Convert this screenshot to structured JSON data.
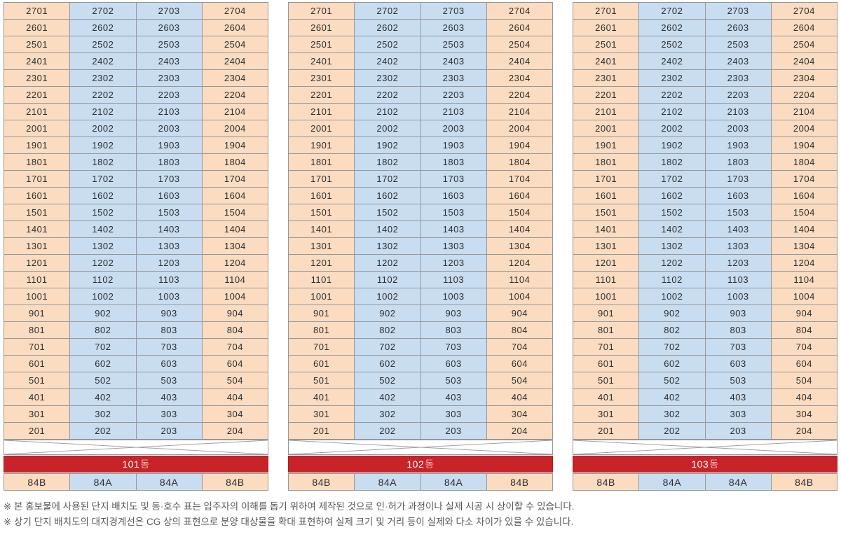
{
  "colors": {
    "peach": "#FBDCC0",
    "blue": "#C8DDF0",
    "banner_red": "#C9232A",
    "grid_border": "#96979A",
    "cell_text": "#2D2D2F",
    "banner_number_text": "#FFFFFF",
    "banner_suffix_text": "#F3B9AE",
    "footnote_text": "#58585A"
  },
  "column_pattern": [
    "peach",
    "blue",
    "blue",
    "peach"
  ],
  "unit_rows": [
    [
      "2701",
      "2702",
      "2703",
      "2704"
    ],
    [
      "2601",
      "2602",
      "2603",
      "2604"
    ],
    [
      "2501",
      "2502",
      "2503",
      "2504"
    ],
    [
      "2401",
      "2402",
      "2403",
      "2404"
    ],
    [
      "2301",
      "2302",
      "2303",
      "2304"
    ],
    [
      "2201",
      "2202",
      "2203",
      "2204"
    ],
    [
      "2101",
      "2102",
      "2103",
      "2104"
    ],
    [
      "2001",
      "2002",
      "2003",
      "2004"
    ],
    [
      "1901",
      "1902",
      "1903",
      "1904"
    ],
    [
      "1801",
      "1802",
      "1803",
      "1804"
    ],
    [
      "1701",
      "1702",
      "1703",
      "1704"
    ],
    [
      "1601",
      "1602",
      "1603",
      "1604"
    ],
    [
      "1501",
      "1502",
      "1503",
      "1504"
    ],
    [
      "1401",
      "1402",
      "1403",
      "1404"
    ],
    [
      "1301",
      "1302",
      "1303",
      "1304"
    ],
    [
      "1201",
      "1202",
      "1203",
      "1204"
    ],
    [
      "1101",
      "1102",
      "1103",
      "1104"
    ],
    [
      "1001",
      "1002",
      "1003",
      "1004"
    ],
    [
      "901",
      "902",
      "903",
      "904"
    ],
    [
      "801",
      "802",
      "803",
      "804"
    ],
    [
      "701",
      "702",
      "703",
      "704"
    ],
    [
      "601",
      "602",
      "603",
      "604"
    ],
    [
      "501",
      "502",
      "503",
      "504"
    ],
    [
      "401",
      "402",
      "403",
      "404"
    ],
    [
      "301",
      "302",
      "303",
      "304"
    ],
    [
      "201",
      "202",
      "203",
      "204"
    ]
  ],
  "buildings": [
    {
      "banner_number": "101",
      "banner_suffix": "동",
      "unit_types": [
        "84B",
        "84A",
        "84A",
        "84B"
      ]
    },
    {
      "banner_number": "102",
      "banner_suffix": "동",
      "unit_types": [
        "84B",
        "84A",
        "84A",
        "84B"
      ]
    },
    {
      "banner_number": "103",
      "banner_suffix": "동",
      "unit_types": [
        "84B",
        "84A",
        "84A",
        "84B"
      ]
    }
  ],
  "footnotes": [
    "※ 본 홍보물에 사용된 단지 배치도 및 동·호수 표는 입주자의 이해를 돕기 위하여 제작된 것으로 인·허가 과정이나 실제 시공 시 상이할 수 있습니다.",
    "※ 상기 단지 배치도의 대지경계선은 CG 상의 표현으로 분양 대상물을 확대 표현하여 실제 크기 및 거리 등이 실제와 다소 차이가 있을 수 있습니다."
  ]
}
